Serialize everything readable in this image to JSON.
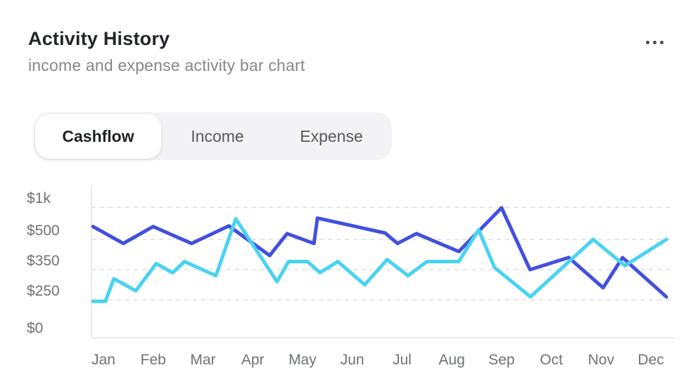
{
  "card": {
    "title": "Activity History",
    "subtitle": "income and expense activity bar chart"
  },
  "menu": {
    "icon": "ellipsis-icon"
  },
  "tabs": {
    "items": [
      {
        "label": "Cashflow",
        "active": true
      },
      {
        "label": "Income",
        "active": false
      },
      {
        "label": "Expense",
        "active": false
      }
    ]
  },
  "chart_data": {
    "type": "line",
    "title": "",
    "xlabel": "",
    "ylabel": "",
    "x_labels": [
      "Jan",
      "Feb",
      "Mar",
      "Apr",
      "May",
      "Jun",
      "Jul",
      "Aug",
      "Sep",
      "Oct",
      "Nov",
      "Dec"
    ],
    "x_unit": "month index (0 = Jan center), fractional = intra-month point",
    "y_ticks": [
      {
        "label": "$1k",
        "value": 1000
      },
      {
        "label": "$500",
        "value": 500
      },
      {
        "label": "$350",
        "value": 350
      },
      {
        "label": "$250",
        "value": 250
      },
      {
        "label": "$0",
        "value": 0
      }
    ],
    "y_scale": "non-linear: tick values 0/250/350/500/1000 drawn at even spacing",
    "grid": "dashed-horizontal",
    "legend_position": "none",
    "series": [
      {
        "name": "income",
        "color": "#4250de",
        "points": [
          [
            -0.21,
            700
          ],
          [
            0.4,
            480
          ],
          [
            1.0,
            700
          ],
          [
            1.77,
            480
          ],
          [
            2.52,
            710
          ],
          [
            3.34,
            420
          ],
          [
            3.69,
            590
          ],
          [
            4.23,
            480
          ],
          [
            4.3,
            830
          ],
          [
            5.66,
            600
          ],
          [
            5.91,
            480
          ],
          [
            6.29,
            590
          ],
          [
            7.14,
            440
          ],
          [
            8.0,
            990
          ],
          [
            8.57,
            350
          ],
          [
            9.35,
            410
          ],
          [
            10.04,
            290
          ],
          [
            10.43,
            410
          ],
          [
            11.31,
            260
          ]
        ]
      },
      {
        "name": "expense",
        "color": "#48d3f2",
        "points": [
          [
            -0.21,
            240
          ],
          [
            0.04,
            240
          ],
          [
            0.21,
            320
          ],
          [
            0.65,
            280
          ],
          [
            1.06,
            380
          ],
          [
            1.39,
            340
          ],
          [
            1.63,
            390
          ],
          [
            2.26,
            330
          ],
          [
            2.66,
            820
          ],
          [
            3.49,
            310
          ],
          [
            3.72,
            390
          ],
          [
            4.1,
            390
          ],
          [
            4.35,
            340
          ],
          [
            4.71,
            390
          ],
          [
            5.25,
            300
          ],
          [
            5.7,
            400
          ],
          [
            6.12,
            330
          ],
          [
            6.5,
            390
          ],
          [
            7.14,
            390
          ],
          [
            7.54,
            650
          ],
          [
            7.86,
            360
          ],
          [
            8.58,
            260
          ],
          [
            9.84,
            500
          ],
          [
            10.48,
            370
          ],
          [
            11.31,
            500
          ]
        ]
      }
    ]
  },
  "colors": {
    "accent_blue": "#4250de",
    "accent_cyan": "#48d3f2",
    "title_text": "#23252b",
    "muted_text": "#85878c",
    "axis_text": "#6f7277",
    "tab_bg": "#f3f3f5",
    "grid_line": "#dcdde1",
    "axis_line": "#e8e9ec"
  }
}
